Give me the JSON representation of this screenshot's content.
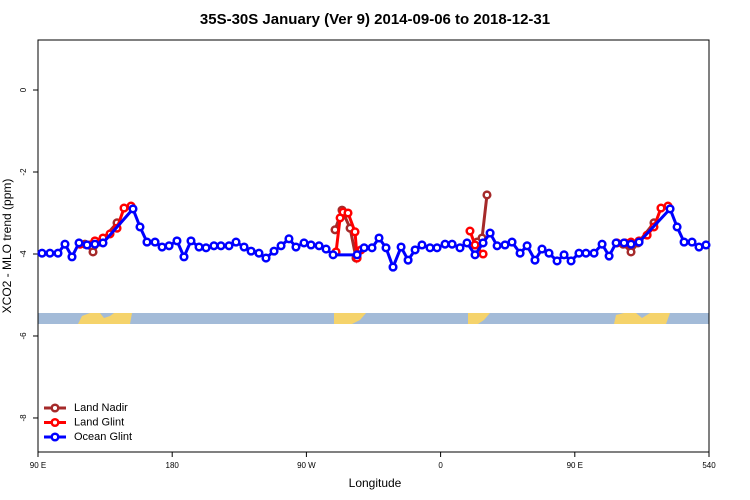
{
  "chart_data": {
    "type": "line",
    "title": "35S-30S January (Ver 9)   2014-09-06 to 2018-12-31",
    "xlabel": "Longitude",
    "ylabel": "XCO2 - MLO trend (ppm)",
    "xlim": [
      90,
      540
    ],
    "ylim": [
      -8.83,
      1.22
    ],
    "xticks": [
      {
        "value": 90,
        "label": "90 E"
      },
      180,
      {
        "value": 270,
        "label": "90 W"
      },
      {
        "value": 360,
        "label": "0"
      },
      {
        "value": 450,
        "label": "90 E"
      },
      540
    ],
    "yticks": [
      0,
      -2,
      -4,
      -6,
      -8
    ],
    "legend": "bottom-left",
    "series": [
      {
        "name": "Land Nadir",
        "color": "#a52a2a",
        "x": [
          121.5,
          126.9,
          131.6,
          143.0,
          null,
          289.2,
          293.9,
          299.3,
          303.3,
          null,
          384.4,
          387.8,
          391.1,
          null,
          482.4,
          487.7,
          492.4,
          503.1
        ],
        "values": [
          -3.76,
          -3.95,
          -3.71,
          -3.24,
          null,
          -3.41,
          -2.93,
          -3.37,
          -4.1,
          null,
          -3.71,
          -3.61,
          -2.56,
          null,
          -3.76,
          -3.95,
          -3.73,
          -3.24
        ]
      },
      {
        "name": "Land Glint",
        "color": "#ff0000",
        "x": [
          118.2,
          128.2,
          133.6,
          138.3,
          143.0,
          147.7,
          152.4,
          null,
          289.9,
          292.6,
          294.6,
          297.9,
          302.6,
          304.0,
          306.6,
          null,
          379.7,
          383.1,
          388.5,
          null,
          478.3,
          483.7,
          487.7,
          493.1,
          498.5,
          503.1,
          507.8,
          512.5
        ],
        "values": [
          -3.76,
          -3.68,
          -3.61,
          -3.51,
          -3.37,
          -2.88,
          -2.83,
          null,
          -3.95,
          -3.12,
          -2.98,
          -3.0,
          -3.46,
          -4.1,
          -3.9,
          null,
          -3.44,
          -3.78,
          -4.0,
          null,
          -3.73,
          -3.73,
          -3.71,
          -3.68,
          -3.54,
          -3.34,
          -2.88,
          -2.83
        ]
      },
      {
        "name": "Ocean Glint",
        "color": "#0000ff",
        "x": [
          92.7,
          98.0,
          103.4,
          108.1,
          112.8,
          117.5,
          122.9,
          128.2,
          133.6,
          153.7,
          158.4,
          163.1,
          168.5,
          173.2,
          177.9,
          183.2,
          187.9,
          192.6,
          198.0,
          202.7,
          208.0,
          212.7,
          218.1,
          222.8,
          228.2,
          232.9,
          238.2,
          242.9,
          248.3,
          253.0,
          258.3,
          263.0,
          268.4,
          273.1,
          278.5,
          283.2,
          287.9,
          304.0,
          308.7,
          314.0,
          318.7,
          323.4,
          328.1,
          333.5,
          338.2,
          342.9,
          347.5,
          352.9,
          357.6,
          363.0,
          367.7,
          373.0,
          377.7,
          383.1,
          388.5,
          393.2,
          397.9,
          403.2,
          407.9,
          413.3,
          418.0,
          423.3,
          428.0,
          432.7,
          438.1,
          442.8,
          447.5,
          452.8,
          457.5,
          462.9,
          468.3,
          473.0,
          477.7,
          483.0,
          487.7,
          493.1,
          513.9,
          518.6,
          523.3,
          528.6,
          533.3,
          538.0
        ],
        "values": [
          -3.98,
          -3.98,
          -3.98,
          -3.76,
          -4.07,
          -3.73,
          -3.78,
          -3.76,
          -3.73,
          -2.9,
          -3.34,
          -3.71,
          -3.71,
          -3.83,
          -3.8,
          -3.68,
          -4.07,
          -3.68,
          -3.83,
          -3.85,
          -3.8,
          -3.8,
          -3.8,
          -3.71,
          -3.83,
          -3.93,
          -3.98,
          -4.1,
          -3.93,
          -3.8,
          -3.63,
          -3.83,
          -3.73,
          -3.78,
          -3.8,
          -3.88,
          -4.02,
          -4.02,
          -3.85,
          -3.85,
          -3.61,
          -3.85,
          -4.32,
          -3.83,
          -4.15,
          -3.9,
          -3.78,
          -3.85,
          -3.85,
          -3.76,
          -3.76,
          -3.85,
          -3.73,
          -4.02,
          -3.73,
          -3.49,
          -3.8,
          -3.78,
          -3.71,
          -3.98,
          -3.8,
          -4.15,
          -3.88,
          -3.98,
          -4.17,
          -4.02,
          -4.17,
          -3.98,
          -3.98,
          -3.98,
          -3.76,
          -4.05,
          -3.73,
          -3.73,
          -3.76,
          -3.71,
          -2.9,
          -3.34,
          -3.71,
          -3.71,
          -3.83,
          -3.78
        ]
      }
    ]
  }
}
